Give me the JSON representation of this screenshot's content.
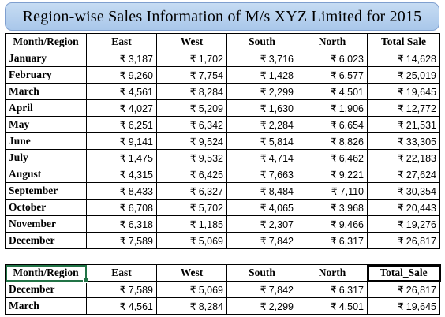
{
  "title": "Region-wise Sales Information of M/s XYZ Limited for 2015",
  "currency": "₹",
  "headers": [
    "Month/Region",
    "East",
    "West",
    "South",
    "North",
    "Total Sale"
  ],
  "rows": [
    {
      "month": "January",
      "values": [
        "3,187",
        "1,702",
        "3,716",
        "6,023",
        "14,628"
      ]
    },
    {
      "month": "February",
      "values": [
        "9,260",
        "7,754",
        "1,428",
        "6,577",
        "25,019"
      ]
    },
    {
      "month": "March",
      "values": [
        "4,561",
        "8,284",
        "2,299",
        "4,501",
        "19,645"
      ]
    },
    {
      "month": "April",
      "values": [
        "4,027",
        "5,209",
        "1,630",
        "1,906",
        "12,772"
      ]
    },
    {
      "month": "May",
      "values": [
        "6,251",
        "6,342",
        "2,284",
        "6,654",
        "21,531"
      ]
    },
    {
      "month": "June",
      "values": [
        "9,141",
        "9,524",
        "5,814",
        "8,826",
        "33,305"
      ]
    },
    {
      "month": "July",
      "values": [
        "1,475",
        "9,532",
        "4,714",
        "6,462",
        "22,183"
      ]
    },
    {
      "month": "August",
      "values": [
        "4,315",
        "6,425",
        "7,663",
        "9,221",
        "27,624"
      ]
    },
    {
      "month": "September",
      "values": [
        "8,433",
        "6,327",
        "8,484",
        "7,110",
        "30,354"
      ]
    },
    {
      "month": "October",
      "values": [
        "6,708",
        "5,702",
        "4,065",
        "3,968",
        "20,443"
      ]
    },
    {
      "month": "November",
      "values": [
        "6,318",
        "1,185",
        "2,307",
        "9,466",
        "19,276"
      ]
    },
    {
      "month": "December",
      "values": [
        "7,589",
        "5,069",
        "7,842",
        "6,317",
        "26,817"
      ]
    }
  ],
  "lookup_headers": [
    "Month/Region",
    "East",
    "West",
    "South",
    "North",
    "Total_Sale"
  ],
  "lookup_rows": [
    {
      "month": "December",
      "values": [
        "7,589",
        "5,069",
        "7,842",
        "6,317",
        "26,817"
      ]
    },
    {
      "month": "March",
      "values": [
        "4,561",
        "8,284",
        "2,299",
        "4,501",
        "19,645"
      ]
    }
  ]
}
